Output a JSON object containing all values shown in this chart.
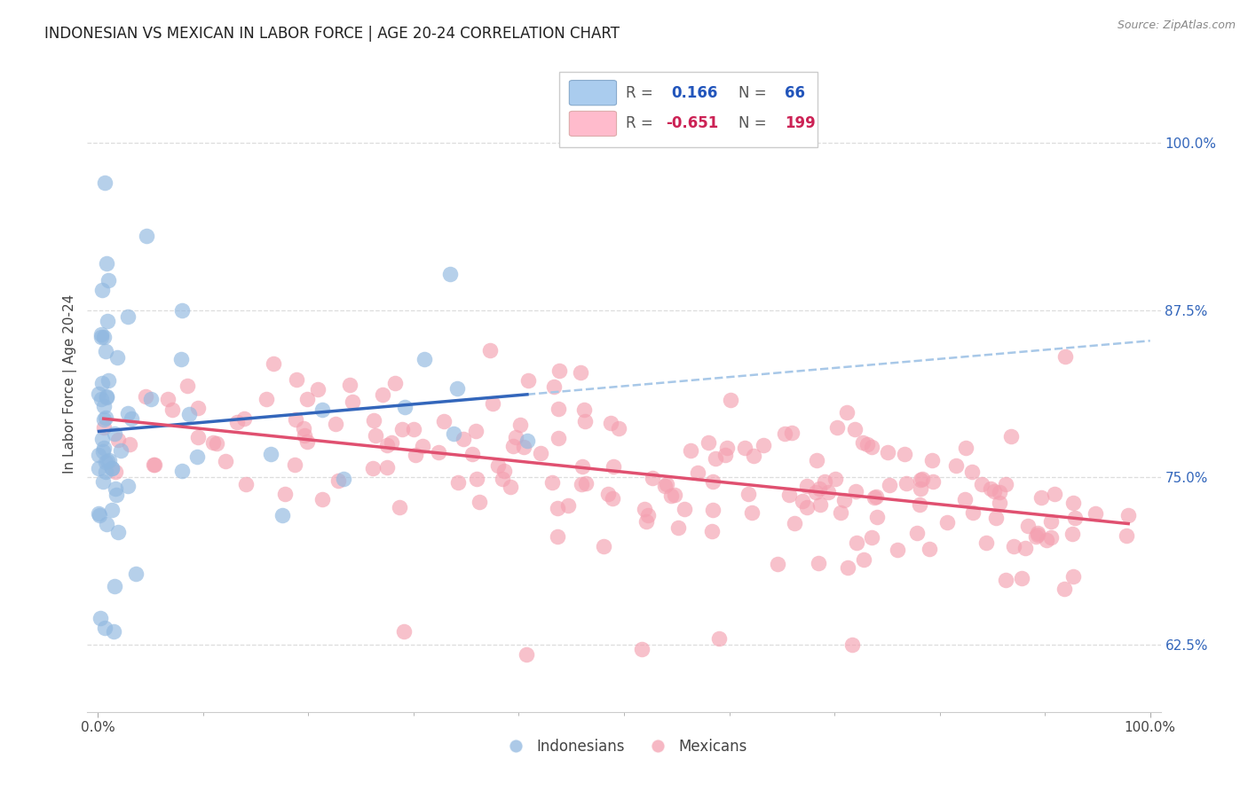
{
  "title": "INDONESIAN VS MEXICAN IN LABOR FORCE | AGE 20-24 CORRELATION CHART",
  "source": "Source: ZipAtlas.com",
  "ylabel": "In Labor Force | Age 20-24",
  "right_yticks": [
    0.625,
    0.75,
    0.875,
    1.0
  ],
  "right_yticklabels": [
    "62.5%",
    "75.0%",
    "87.5%",
    "100.0%"
  ],
  "xlim": [
    -0.01,
    1.01
  ],
  "ylim": [
    0.575,
    1.065
  ],
  "legend_r_blue": "0.166",
  "legend_n_blue": "66",
  "legend_r_pink": "-0.651",
  "legend_n_pink": "199",
  "blue_scatter_color": "#90B8E0",
  "pink_scatter_color": "#F4A0B0",
  "blue_line_color": "#3366BB",
  "pink_line_color": "#E05070",
  "dashed_line_color": "#A8C8E8",
  "blue_text_color": "#2255BB",
  "pink_text_color": "#CC2255",
  "right_tick_color": "#3366BB",
  "grid_color": "#DDDDDD",
  "title_color": "#222222",
  "label_color": "#444444"
}
